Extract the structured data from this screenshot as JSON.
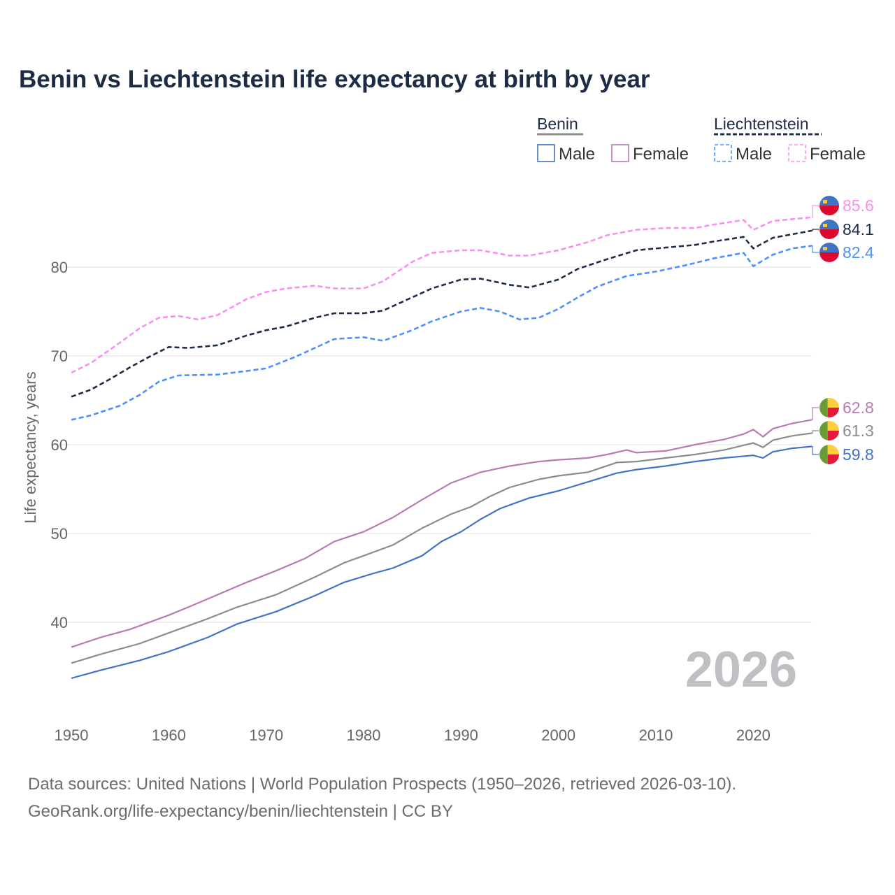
{
  "title": "Benin vs Liechtenstein life expectancy at birth by year",
  "year_watermark": "2026",
  "footer": {
    "line1": "Data sources: United Nations | World Population Prospects (1950–2026, retrieved 2026-03-10).",
    "line2": "GeoRank.org/life-expectancy/benin/liechtenstein | CC BY"
  },
  "legend": {
    "groups": [
      {
        "name": "Benin",
        "color": "#8c8c8c",
        "dashed": false,
        "items": [
          {
            "label": "Male",
            "color": "#4472c4"
          },
          {
            "label": "Female",
            "color": "#b77bb4"
          }
        ]
      },
      {
        "name": "Liechtenstein",
        "color": "#1f2d4a",
        "dashed": true,
        "items": [
          {
            "label": "Male",
            "color": "#4d90fe"
          },
          {
            "label": "Female",
            "color": "#f890f0"
          }
        ]
      }
    ]
  },
  "chart_data": {
    "type": "line",
    "title": "Benin vs Liechtenstein life expectancy at birth by year",
    "xlabel": "",
    "ylabel": "Life expectancy, years",
    "xlim": [
      1950,
      2026
    ],
    "ylim": [
      31,
      89
    ],
    "xticks": [
      1950,
      1960,
      1970,
      1980,
      1990,
      2000,
      2010,
      2020
    ],
    "yticks": [
      40,
      50,
      60,
      70,
      80
    ],
    "grid": true,
    "legend_position": "top-right",
    "series": [
      {
        "name": "Liechtenstein Female",
        "country": "liechtenstein",
        "color": "#f890f0",
        "dashed": true,
        "end_label": "85.6",
        "x": [
          1950,
          1952,
          1955,
          1957,
          1959,
          1961,
          1963,
          1965,
          1968,
          1970,
          1972,
          1975,
          1977,
          1980,
          1982,
          1985,
          1987,
          1990,
          1992,
          1995,
          1997,
          2000,
          2003,
          2005,
          2008,
          2011,
          2014,
          2016,
          2019,
          2020,
          2022,
          2024,
          2026
        ],
        "y": [
          68.1,
          69.2,
          71.5,
          73.1,
          74.3,
          74.5,
          74.1,
          74.6,
          76.4,
          77.2,
          77.6,
          77.9,
          77.6,
          77.6,
          78.4,
          80.6,
          81.6,
          81.9,
          81.9,
          81.3,
          81.3,
          81.9,
          82.8,
          83.6,
          84.2,
          84.4,
          84.4,
          84.8,
          85.3,
          84.2,
          85.2,
          85.4,
          85.6
        ]
      },
      {
        "name": "Liechtenstein",
        "country": "liechtenstein",
        "color": "#1f2d4a",
        "dashed": true,
        "end_label": "84.1",
        "x": [
          1950,
          1952,
          1954,
          1956,
          1958,
          1960,
          1962,
          1965,
          1968,
          1970,
          1972,
          1975,
          1977,
          1980,
          1982,
          1985,
          1987,
          1990,
          1992,
          1995,
          1997,
          2000,
          2002,
          2005,
          2008,
          2011,
          2014,
          2016,
          2019,
          2020,
          2022,
          2024,
          2026
        ],
        "y": [
          65.4,
          66.2,
          67.4,
          68.7,
          69.9,
          71.0,
          70.9,
          71.2,
          72.3,
          72.9,
          73.3,
          74.3,
          74.8,
          74.8,
          75.1,
          76.6,
          77.6,
          78.6,
          78.7,
          78.0,
          77.7,
          78.6,
          79.8,
          80.9,
          81.9,
          82.2,
          82.5,
          82.9,
          83.4,
          82.1,
          83.3,
          83.7,
          84.1
        ]
      },
      {
        "name": "Liechtenstein Male",
        "country": "liechtenstein",
        "color": "#4d90fe",
        "dashed": true,
        "end_label": "82.4",
        "x": [
          1950,
          1952,
          1955,
          1957,
          1959,
          1961,
          1965,
          1968,
          1970,
          1973,
          1975,
          1977,
          1980,
          1982,
          1985,
          1987,
          1990,
          1992,
          1994,
          1996,
          1998,
          2000,
          2002,
          2004,
          2007,
          2010,
          2013,
          2016,
          2019,
          2020,
          2022,
          2024,
          2026
        ],
        "y": [
          62.8,
          63.3,
          64.4,
          65.6,
          67.1,
          67.8,
          67.9,
          68.3,
          68.6,
          69.9,
          70.9,
          71.9,
          72.1,
          71.7,
          72.9,
          73.9,
          75.0,
          75.4,
          75.0,
          74.1,
          74.3,
          75.3,
          76.6,
          77.8,
          79.0,
          79.5,
          80.2,
          81.0,
          81.6,
          80.1,
          81.4,
          82.1,
          82.4
        ]
      },
      {
        "name": "Benin Female",
        "country": "benin",
        "color": "#b77bb4",
        "dashed": false,
        "end_label": "62.8",
        "x": [
          1950,
          1953,
          1956,
          1960,
          1962,
          1965,
          1968,
          1971,
          1974,
          1977,
          1980,
          1983,
          1986,
          1989,
          1991,
          1992,
          1995,
          1998,
          2000,
          2003,
          2005,
          2007,
          2008,
          2011,
          2014,
          2017,
          2019,
          2020,
          2021,
          2022,
          2024,
          2026
        ],
        "y": [
          37.2,
          38.3,
          39.2,
          40.8,
          41.7,
          43.1,
          44.5,
          45.8,
          47.2,
          49.1,
          50.2,
          51.8,
          53.8,
          55.7,
          56.5,
          56.9,
          57.6,
          58.1,
          58.3,
          58.5,
          58.9,
          59.4,
          59.1,
          59.3,
          60.0,
          60.6,
          61.2,
          61.7,
          60.9,
          61.8,
          62.4,
          62.8
        ]
      },
      {
        "name": "Benin",
        "country": "benin",
        "color": "#8c8c8c",
        "dashed": false,
        "end_label": "61.3",
        "x": [
          1950,
          1953,
          1957,
          1960,
          1964,
          1967,
          1971,
          1975,
          1978,
          1980,
          1983,
          1986,
          1989,
          1991,
          1993,
          1995,
          1998,
          2000,
          2003,
          2006,
          2008,
          2011,
          2014,
          2017,
          2020,
          2021,
          2022,
          2024,
          2026
        ],
        "y": [
          35.4,
          36.4,
          37.6,
          38.8,
          40.4,
          41.7,
          43.1,
          45.1,
          46.7,
          47.5,
          48.7,
          50.6,
          52.2,
          53.0,
          54.2,
          55.2,
          56.1,
          56.5,
          56.9,
          58.0,
          58.1,
          58.5,
          58.9,
          59.4,
          60.2,
          59.7,
          60.5,
          61.0,
          61.3
        ]
      },
      {
        "name": "Benin Male",
        "country": "benin",
        "color": "#4472c4",
        "dashed": false,
        "end_label": "59.8",
        "x": [
          1950,
          1953,
          1957,
          1960,
          1964,
          1967,
          1971,
          1975,
          1978,
          1981,
          1983,
          1986,
          1988,
          1990,
          1992,
          1994,
          1997,
          2000,
          2003,
          2006,
          2008,
          2011,
          2014,
          2017,
          2020,
          2021,
          2022,
          2024,
          2026
        ],
        "y": [
          33.7,
          34.6,
          35.7,
          36.7,
          38.3,
          39.8,
          41.2,
          43.0,
          44.5,
          45.5,
          46.1,
          47.5,
          49.1,
          50.2,
          51.6,
          52.8,
          54.0,
          54.8,
          55.8,
          56.8,
          57.2,
          57.6,
          58.1,
          58.5,
          58.8,
          58.5,
          59.2,
          59.6,
          59.8
        ]
      }
    ]
  }
}
